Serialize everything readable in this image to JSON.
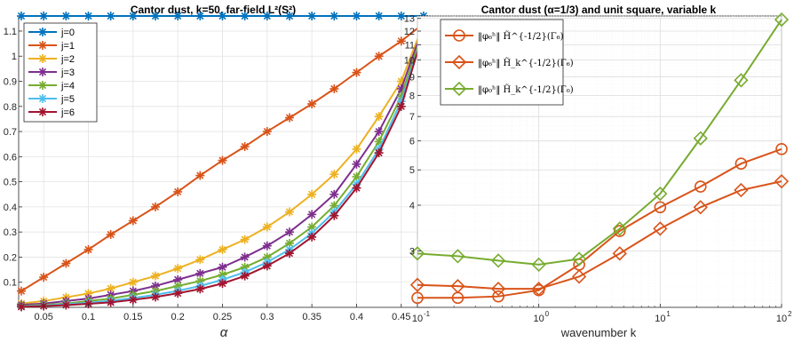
{
  "chart_data": [
    {
      "type": "line",
      "title": "Cantor dust, k=50, far-field L²(S²)",
      "xlabel": "α",
      "ylabel": "",
      "xlim": [
        0.022,
        0.482
      ],
      "ylim": [
        0.0,
        1.16
      ],
      "xticks": [
        0.05,
        0.1,
        0.15,
        0.2,
        0.25,
        0.3,
        0.35,
        0.4,
        0.45
      ],
      "xtick_labels": [
        "0.05",
        "0.1",
        "0.15",
        "0.2",
        "0.25",
        "0.3",
        "0.35",
        "0.4",
        "0.45"
      ],
      "yticks": [
        0.1,
        0.2,
        0.3,
        0.4,
        0.5,
        0.6,
        0.7,
        0.8,
        0.9,
        1.0,
        1.1
      ],
      "ytick_labels": [
        "0.1",
        "0.2",
        "0.3",
        "0.4",
        "0.5",
        "0.6",
        "0.7",
        "0.8",
        "0.9",
        "1",
        "1.1"
      ],
      "grid": true,
      "legend_position": "top-left",
      "marker": "asterisk",
      "x": [
        0.025,
        0.05,
        0.075,
        0.1,
        0.125,
        0.15,
        0.175,
        0.2,
        0.225,
        0.25,
        0.275,
        0.3,
        0.325,
        0.35,
        0.375,
        0.4,
        0.425,
        0.45,
        0.475
      ],
      "series": [
        {
          "name": "j=0",
          "color": "#0072BD",
          "values": [
            1.16,
            1.16,
            1.16,
            1.16,
            1.16,
            1.16,
            1.16,
            1.16,
            1.16,
            1.16,
            1.16,
            1.16,
            1.16,
            1.16,
            1.16,
            1.16,
            1.16,
            1.16,
            1.16
          ]
        },
        {
          "name": "j=1",
          "color": "#D95319",
          "values": [
            0.065,
            0.12,
            0.175,
            0.23,
            0.29,
            0.345,
            0.4,
            0.46,
            0.525,
            0.585,
            0.64,
            0.7,
            0.755,
            0.81,
            0.87,
            0.935,
            1.0,
            1.06,
            1.13
          ]
        },
        {
          "name": "j=2",
          "color": "#EDB120",
          "values": [
            0.015,
            0.025,
            0.04,
            0.055,
            0.075,
            0.1,
            0.125,
            0.155,
            0.19,
            0.23,
            0.27,
            0.32,
            0.38,
            0.45,
            0.53,
            0.63,
            0.76,
            0.9,
            1.13
          ]
        },
        {
          "name": "j=3",
          "color": "#7E2F8E",
          "values": [
            0.01,
            0.015,
            0.025,
            0.035,
            0.05,
            0.065,
            0.085,
            0.11,
            0.135,
            0.16,
            0.2,
            0.245,
            0.3,
            0.37,
            0.45,
            0.57,
            0.7,
            0.87,
            1.12
          ]
        },
        {
          "name": "j=4",
          "color": "#77AC30",
          "values": [
            0.005,
            0.01,
            0.015,
            0.025,
            0.035,
            0.05,
            0.065,
            0.085,
            0.105,
            0.13,
            0.16,
            0.2,
            0.255,
            0.32,
            0.405,
            0.52,
            0.66,
            0.84,
            1.11
          ]
        },
        {
          "name": "j=5",
          "color": "#4DBEEE",
          "values": [
            0.003,
            0.007,
            0.012,
            0.018,
            0.026,
            0.037,
            0.05,
            0.066,
            0.085,
            0.11,
            0.14,
            0.18,
            0.23,
            0.295,
            0.38,
            0.49,
            0.63,
            0.82,
            1.1
          ]
        },
        {
          "name": "j=6",
          "color": "#A2142F",
          "values": [
            0.002,
            0.005,
            0.009,
            0.014,
            0.02,
            0.03,
            0.041,
            0.056,
            0.073,
            0.095,
            0.125,
            0.165,
            0.215,
            0.28,
            0.365,
            0.475,
            0.615,
            0.8,
            1.1
          ]
        }
      ]
    },
    {
      "type": "line",
      "title": "Cantor dust (α=1/3) and unit square, variable k",
      "xlabel": "wavenumber k",
      "ylabel": "",
      "xscale": "log",
      "yscale": "log",
      "xlim": [
        0.1,
        100
      ],
      "ylim": [
        2.1,
        13.2
      ],
      "xticks": [
        0.1,
        1,
        10,
        100
      ],
      "xtick_labels": [
        "10",
        "10",
        "10",
        "10"
      ],
      "xtick_exponents": [
        "-1",
        "0",
        "1",
        "2"
      ],
      "yticks": [
        3,
        4,
        5,
        6,
        7,
        8,
        9,
        10,
        11,
        12,
        13
      ],
      "ytick_labels": [
        "3",
        "4",
        "5",
        "6",
        "7",
        "8",
        "9",
        "10",
        "11",
        "12",
        "13"
      ],
      "grid": true,
      "legend_position": "top-left",
      "marker": "open circle / open diamond",
      "x": [
        0.1,
        0.215,
        0.464,
        1.0,
        2.15,
        4.64,
        10.0,
        21.5,
        46.4,
        100.0
      ],
      "series": [
        {
          "legend_tex": "‖φ₆ʰ‖ H̃^{-1/2}(Γ₆)",
          "color": "#D95319",
          "marker": "circle",
          "values": [
            2.23,
            2.23,
            2.25,
            2.34,
            2.75,
            3.4,
            3.95,
            4.5,
            5.2,
            5.7
          ]
        },
        {
          "legend_tex": "‖φ₆ʰ‖ H̃_k^{-1/2}(Γ₆)",
          "color": "#D95319",
          "marker": "diamond",
          "values": [
            2.42,
            2.4,
            2.36,
            2.36,
            2.55,
            2.95,
            3.45,
            3.95,
            4.4,
            4.65
          ]
        },
        {
          "legend_tex": "‖φ₀ʰ‖ H̃_k^{-1/2}(Γ₀)",
          "color": "#77AC30",
          "marker": "diamond",
          "values": [
            2.95,
            2.9,
            2.82,
            2.75,
            2.85,
            3.45,
            4.3,
            6.1,
            8.8,
            12.9
          ]
        }
      ]
    }
  ]
}
